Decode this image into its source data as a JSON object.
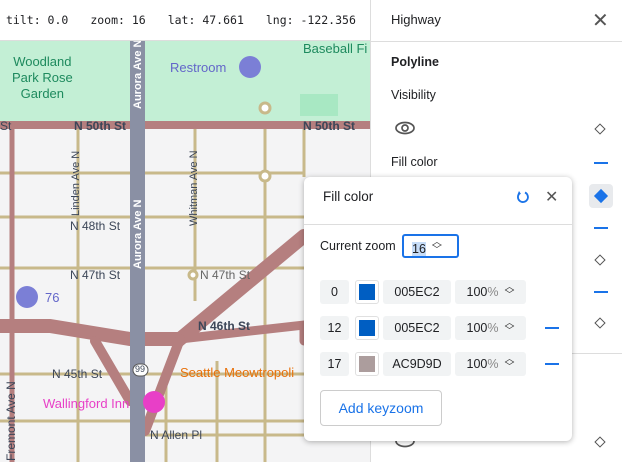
{
  "status": {
    "tilt": "tilt: 0.0",
    "zoom": "zoom: 16",
    "lat": "lat: 47.661",
    "lng": "lng: -122.356"
  },
  "map": {
    "labels": {
      "park": "Woodland\nPark Rose\nGarden",
      "restroom": "Restroom",
      "baseball": "Baseball Fi",
      "n50a": "N 50th St",
      "n50b": "N 50th St",
      "st": "St",
      "linden": "Linden Ave N",
      "aurora1": "Aurora Ave N",
      "aurora2": "Aurora Ave N",
      "whitman": "Whitman Ave N",
      "n48": "N 48th St",
      "n47a": "N 47th St",
      "n47b": "N 47th St",
      "gas": "76",
      "n46": "N 46th St",
      "n45": "N 45th St",
      "hwy": "99",
      "fremont": "Fremont Ave N",
      "meow": "Seattle Meowtropoli",
      "inn": "Wallingford Inn",
      "allen": "N Allen Pl"
    }
  },
  "panel": {
    "title": "Highway",
    "section": "Polyline",
    "visibility": "Visibility",
    "fill_color": "Fill color"
  },
  "popup": {
    "title": "Fill color",
    "current_zoom_label": "Current zoom",
    "current_zoom": "16",
    "keyzooms": [
      {
        "zoom": "0",
        "color": "#005EC2",
        "hex": "005EC2",
        "opacity": "100",
        "unit": "%"
      },
      {
        "zoom": "12",
        "color": "#005EC2",
        "hex": "005EC2",
        "opacity": "100",
        "unit": "%"
      },
      {
        "zoom": "17",
        "color": "#AC9D9D",
        "hex": "AC9D9D",
        "opacity": "100",
        "unit": "%"
      }
    ],
    "add_label": "Add keyzoom"
  },
  "colors": {
    "accent": "#1a73e8",
    "highway": "#b57f7f",
    "park": "#c3efd5"
  }
}
